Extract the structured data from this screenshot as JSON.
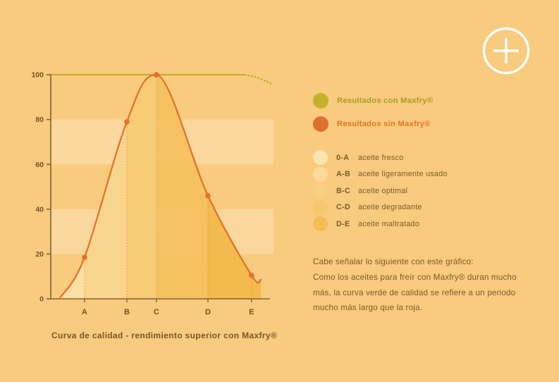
{
  "canvas": {
    "background": "#f9cb7e"
  },
  "zoom_button": {
    "icon": "plus-icon",
    "color": "#ffffff"
  },
  "chart_data": {
    "type": "area",
    "title": "Curva de calidad - rendimiento superior con Maxfry®",
    "xlabel": "",
    "ylabel": "",
    "ylim": [
      0,
      100
    ],
    "yticks": [
      0,
      20,
      40,
      60,
      80,
      100
    ],
    "grid": "off",
    "background_bands": {
      "color": "rgba(255,255,255,0.24)",
      "ranges": [
        {
          "from": 60,
          "to": 80
        },
        {
          "from": 20,
          "to": 40
        }
      ]
    },
    "x_categories": [
      {
        "label": "A",
        "x": 0.154
      },
      {
        "label": "B",
        "x": 0.347
      },
      {
        "label": "C",
        "x": 0.482
      },
      {
        "label": "D",
        "x": 0.717
      },
      {
        "label": "E",
        "x": 0.916
      }
    ],
    "series": [
      {
        "name": "Resultados con Maxfry®",
        "type": "flat-line",
        "color": "#beac25",
        "value": 100,
        "solid_from_x": 0.0,
        "solid_to_x": 0.884,
        "dotted_tail": {
          "to_x": 1.013,
          "to_value": 95.5
        }
      },
      {
        "name": "Resultados sin Maxfry®",
        "type": "bell-area",
        "color": "#e4722b",
        "points": [
          {
            "x": 0.039,
            "value": 0
          },
          {
            "x": 0.154,
            "value": 18.5,
            "label": "A",
            "marker": true
          },
          {
            "x": 0.347,
            "value": 79,
            "label": "B",
            "marker": true
          },
          {
            "x": 0.482,
            "value": 100,
            "label": "C",
            "marker": true,
            "peak": true
          },
          {
            "x": 0.717,
            "value": 46,
            "label": "D",
            "marker": true
          },
          {
            "x": 0.916,
            "value": 10.5,
            "label": "E",
            "marker": true
          },
          {
            "x": 0.958,
            "value": 8.5
          }
        ],
        "segment_fills": [
          "#fae0a4",
          "#f8d58d",
          "#f7cb74",
          "#f5c160",
          "#f2b84b"
        ]
      }
    ]
  },
  "legend": {
    "series": [
      {
        "label": "Resultados con Maxfry®",
        "dot_color": "#c2b22b",
        "text_color": "#a89d28"
      },
      {
        "label": "Resultados sin Maxfry®",
        "dot_color": "#e06e2e",
        "text_color": "#e4722b"
      }
    ],
    "scale": [
      {
        "range": "0-A",
        "label": "aceite fresco",
        "color": "#fbe5b2"
      },
      {
        "range": "A-B",
        "label": "aceite ligeramente usado",
        "color": "#fad999"
      },
      {
        "range": "B-C",
        "label": "aceite optimal",
        "color": "#f8d083"
      },
      {
        "range": "C-D",
        "label": "aceite degradante",
        "color": "#f6c76c"
      },
      {
        "range": "D-E",
        "label": "aceite maltratado",
        "color": "#f4bd55"
      }
    ]
  },
  "note": {
    "text": "Cabe señalar lo siguiente con este gráfico:\nComo los aceites para freír con Maxfry® duran mucho\nmás, la curva verde de calidad se refiere a un periodo\nmucho más largo que la roja."
  },
  "caption": "Curva de calidad - rendimiento superior con Maxfry®"
}
